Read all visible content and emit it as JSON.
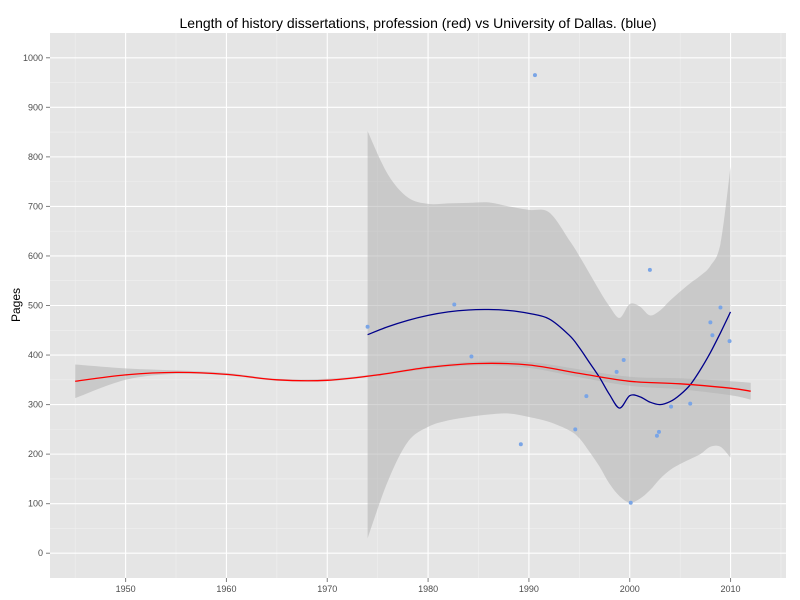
{
  "chart_data": {
    "type": "scatter",
    "title": "Length of history dissertations, profession (red) vs University of Dallas. (blue)",
    "xlabel": "",
    "ylabel": "Pages",
    "xlim": [
      1942.5,
      2015.5
    ],
    "ylim": [
      -50,
      1050
    ],
    "x_ticks": [
      1950,
      1960,
      1970,
      1980,
      1990,
      2000,
      2010
    ],
    "y_ticks": [
      0,
      100,
      200,
      300,
      400,
      500,
      600,
      700,
      800,
      900,
      1000
    ],
    "grid": true,
    "colors": {
      "panel": "#e5e5e5",
      "grid_major": "#ffffff",
      "grid_minor": "#f0f0f0",
      "ribbon": "#b3b3b3",
      "profession_line": "#ff0000",
      "dallas_line": "#00008b",
      "dallas_points": "#7aa5e6"
    },
    "series": [
      {
        "kind": "points",
        "x": [
          1974,
          1982.6,
          1984.3,
          1989.2,
          1990.6,
          1994.6,
          1995.7,
          1998.7,
          1999.4,
          2000.1,
          2002.0,
          2002.7,
          2002.9,
          2004.1,
          2006.0,
          2008.0,
          2008.2,
          2009.0,
          2009.9
        ],
        "values": [
          457,
          502,
          397,
          220,
          965,
          250,
          317,
          366,
          390,
          102,
          572,
          237,
          245,
          296,
          302,
          466,
          440,
          496,
          428
        ]
      },
      {
        "kind": "smooth",
        "x": [
          1974,
          1976,
          1978,
          1980,
          1982,
          1984,
          1986,
          1988,
          1990,
          1992,
          1994,
          1995,
          1996,
          1997,
          1998,
          1999,
          2000,
          2001,
          2002,
          2003,
          2004,
          2005,
          2006,
          2007,
          2008,
          2009,
          2010
        ],
        "values": [
          441,
          457,
          470,
          480,
          487,
          491,
          492,
          490,
          484,
          473,
          440,
          415,
          385,
          355,
          320,
          293,
          318,
          316,
          305,
          300,
          306,
          320,
          340,
          370,
          405,
          445,
          487
        ],
        "lower": [
          30,
          145,
          225,
          255,
          268,
          275,
          280,
          282,
          275,
          265,
          248,
          232,
          205,
          175,
          140,
          115,
          102,
          110,
          127,
          150,
          168,
          180,
          190,
          200,
          215,
          215,
          193
        ],
        "upper": [
          852,
          765,
          718,
          705,
          706,
          707,
          708,
          700,
          693,
          688,
          632,
          600,
          565,
          530,
          498,
          475,
          503,
          498,
          480,
          490,
          510,
          528,
          545,
          560,
          580,
          625,
          780
        ]
      },
      {
        "kind": "smooth",
        "x": [
          1945,
          1950,
          1955,
          1960,
          1965,
          1970,
          1975,
          1980,
          1985,
          1990,
          1995,
          2000,
          2005,
          2010,
          2012
        ],
        "values": [
          347,
          360,
          365,
          361,
          350,
          349,
          360,
          375,
          383,
          380,
          363,
          347,
          342,
          333,
          327
        ],
        "lower": [
          313,
          350,
          362,
          359,
          348,
          347,
          358,
          372,
          379,
          374,
          355,
          338,
          331,
          319,
          310
        ],
        "upper": [
          381,
          373,
          369,
          364,
          352,
          352,
          362,
          378,
          387,
          386,
          371,
          356,
          353,
          347,
          344
        ]
      }
    ]
  }
}
